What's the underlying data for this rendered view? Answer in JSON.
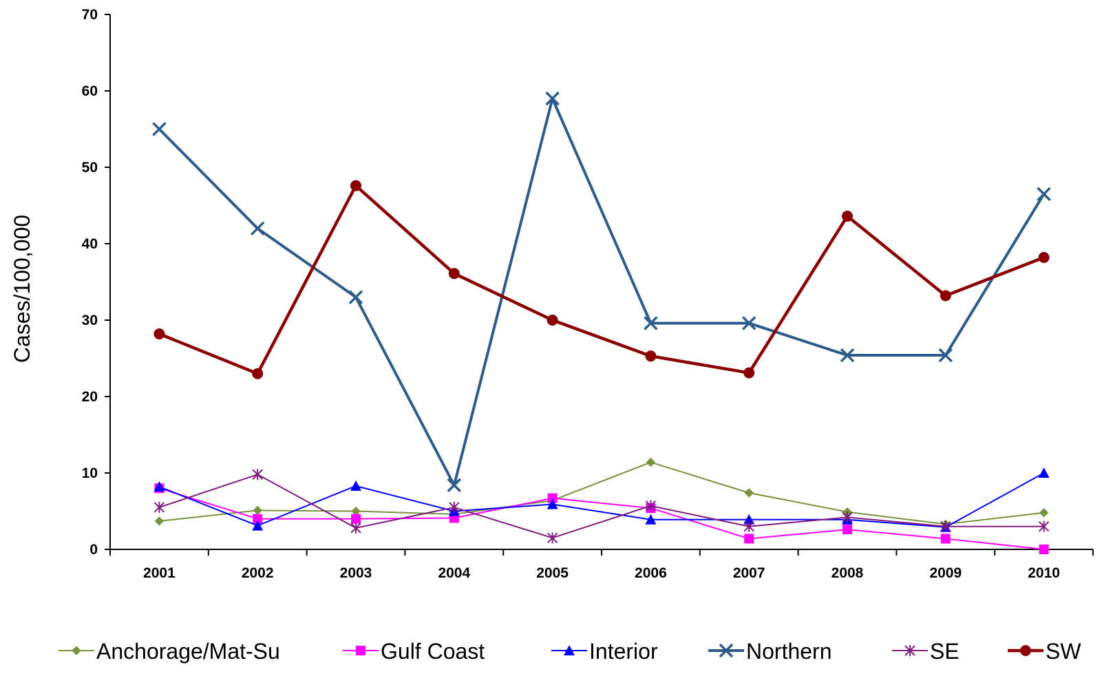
{
  "chart_data": {
    "type": "line",
    "title": "",
    "xlabel": "",
    "ylabel": "Cases/100,000",
    "ylim": [
      0,
      70
    ],
    "yticks": [
      0,
      10,
      20,
      30,
      40,
      50,
      60,
      70
    ],
    "categories": [
      "2001",
      "2002",
      "2003",
      "2004",
      "2005",
      "2006",
      "2007",
      "2008",
      "2009",
      "2010"
    ],
    "grid": false,
    "legend_position": "bottom",
    "series": [
      {
        "name": "Anchorage/Mat-Su",
        "color": "#77933c",
        "marker": "diamond",
        "values": [
          3.7,
          5.1,
          5.0,
          4.6,
          6.4,
          11.4,
          7.4,
          4.9,
          3.3,
          4.8
        ]
      },
      {
        "name": "Gulf Coast",
        "color": "#ff00ff",
        "marker": "square",
        "values": [
          8.0,
          4.0,
          4.0,
          4.1,
          6.7,
          5.4,
          1.4,
          2.6,
          1.4,
          0.0
        ]
      },
      {
        "name": "Interior",
        "color": "#0000ff",
        "marker": "triangle",
        "values": [
          8.2,
          3.1,
          8.3,
          5.0,
          5.9,
          3.9,
          3.9,
          3.9,
          2.9,
          10.0
        ]
      },
      {
        "name": "Northern",
        "color": "#2e5c8a",
        "marker": "x",
        "values": [
          55.0,
          42.0,
          33.0,
          8.4,
          59.0,
          29.6,
          29.6,
          25.4,
          25.4,
          46.5
        ]
      },
      {
        "name": "SE",
        "color": "#7f1a7f",
        "marker": "star",
        "values": [
          5.5,
          9.8,
          2.8,
          5.5,
          1.5,
          5.7,
          3.0,
          4.2,
          3.0,
          3.0
        ]
      },
      {
        "name": "SW",
        "color": "#8b0000",
        "marker": "circle",
        "values": [
          28.2,
          23.0,
          47.6,
          36.1,
          30.0,
          25.3,
          23.1,
          43.6,
          33.2,
          38.2
        ]
      }
    ]
  }
}
